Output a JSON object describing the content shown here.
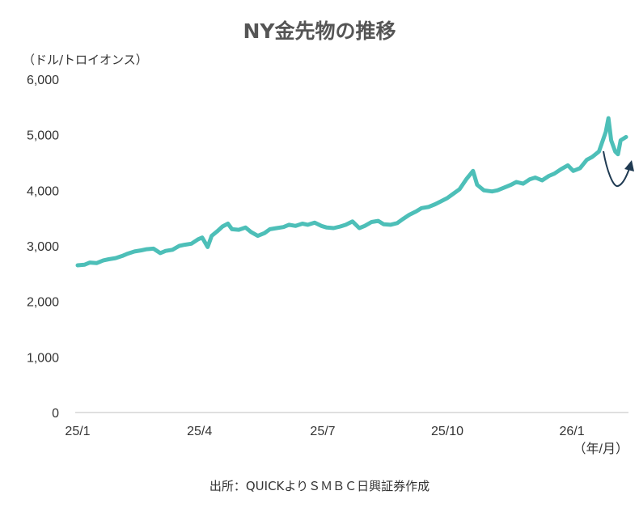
{
  "chart_data": {
    "type": "line",
    "title": "NY金先物の推移",
    "ylabel": "（ドル/トロイオンス）",
    "xlabel": "（年/月）",
    "source": "出所：QUICKよりＳＭＢＣ日興証券作成",
    "ylim": [
      0,
      6000
    ],
    "yticks": [
      "0",
      "1,000",
      "2,000",
      "3,000",
      "4,000",
      "5,000",
      "6,000"
    ],
    "ytick_values": [
      0,
      1000,
      2000,
      3000,
      4000,
      5000,
      6000
    ],
    "xticks": [
      "25/1",
      "25/4",
      "25/7",
      "25/10",
      "26/1"
    ],
    "xtick_values": [
      "2025-01-01",
      "2025-04-01",
      "2025-07-01",
      "2025-10-01",
      "2026-01-01"
    ],
    "xlim": [
      "2025-01-01",
      "2026-02-10"
    ],
    "grid": false,
    "legend": "none",
    "colors": {
      "line": "#4dbfb8",
      "arrow": "#1f3a52",
      "axis": "#bfbfbf",
      "title": "#555555"
    },
    "annotation": "rebound-arrow",
    "series": [
      {
        "x": [
          "2025-01-01",
          "2025-01-06",
          "2025-01-10",
          "2025-01-15",
          "2025-01-20",
          "2025-01-24",
          "2025-01-29",
          "2025-02-03",
          "2025-02-07",
          "2025-02-12",
          "2025-02-17",
          "2025-02-21",
          "2025-02-26",
          "2025-03-03",
          "2025-03-07",
          "2025-03-12",
          "2025-03-17",
          "2025-03-21",
          "2025-03-26",
          "2025-03-31",
          "2025-04-03",
          "2025-04-07",
          "2025-04-10",
          "2025-04-14",
          "2025-04-18",
          "2025-04-22",
          "2025-04-25",
          "2025-04-30",
          "2025-05-05",
          "2025-05-09",
          "2025-05-14",
          "2025-05-19",
          "2025-05-23",
          "2025-05-28",
          "2025-06-02",
          "2025-06-06",
          "2025-06-11",
          "2025-06-16",
          "2025-06-20",
          "2025-06-25",
          "2025-06-30",
          "2025-07-04",
          "2025-07-09",
          "2025-07-14",
          "2025-07-18",
          "2025-07-23",
          "2025-07-28",
          "2025-08-01",
          "2025-08-06",
          "2025-08-11",
          "2025-08-15",
          "2025-08-20",
          "2025-08-25",
          "2025-08-29",
          "2025-09-03",
          "2025-09-08",
          "2025-09-12",
          "2025-09-17",
          "2025-09-22",
          "2025-09-26",
          "2025-10-01",
          "2025-10-06",
          "2025-10-10",
          "2025-10-15",
          "2025-10-20",
          "2025-10-23",
          "2025-10-28",
          "2025-11-03",
          "2025-11-07",
          "2025-11-12",
          "2025-11-17",
          "2025-11-21",
          "2025-11-26",
          "2025-12-01",
          "2025-12-05",
          "2025-12-10",
          "2025-12-15",
          "2025-12-19",
          "2025-12-24",
          "2025-12-29",
          "2026-01-02",
          "2026-01-07",
          "2026-01-12",
          "2026-01-16",
          "2026-01-21",
          "2026-01-26",
          "2026-01-28",
          "2026-01-30",
          "2026-02-02",
          "2026-02-04",
          "2026-02-06",
          "2026-02-10"
        ],
        "y": [
          2650,
          2660,
          2700,
          2690,
          2740,
          2760,
          2780,
          2820,
          2860,
          2900,
          2920,
          2940,
          2950,
          2870,
          2910,
          2930,
          3000,
          3020,
          3040,
          3120,
          3150,
          2980,
          3180,
          3260,
          3350,
          3400,
          3300,
          3290,
          3330,
          3250,
          3180,
          3230,
          3300,
          3320,
          3340,
          3380,
          3360,
          3400,
          3380,
          3420,
          3360,
          3330,
          3320,
          3350,
          3380,
          3440,
          3320,
          3360,
          3430,
          3450,
          3390,
          3380,
          3410,
          3480,
          3560,
          3620,
          3680,
          3700,
          3750,
          3800,
          3860,
          3950,
          4020,
          4200,
          4350,
          4100,
          4000,
          3980,
          4000,
          4050,
          4100,
          4150,
          4120,
          4200,
          4230,
          4180,
          4260,
          4300,
          4380,
          4450,
          4350,
          4400,
          4550,
          4600,
          4700,
          5050,
          5300,
          4900,
          4700,
          4650,
          4900,
          4960
        ]
      }
    ]
  }
}
